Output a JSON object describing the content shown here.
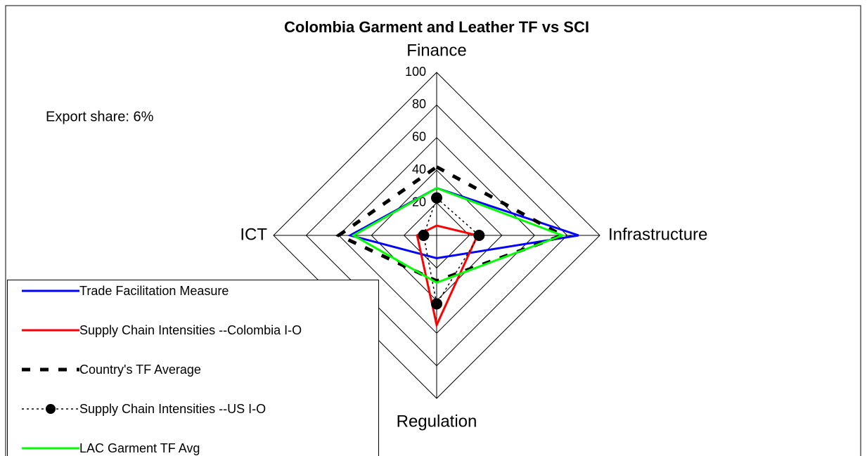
{
  "chart_data": {
    "type": "radar",
    "title": "Colombia Garment and Leather TF vs SCI",
    "annotation": "Export share: 6%",
    "categories": [
      "Finance",
      "Infrastructure",
      "Regulation",
      "ICT"
    ],
    "ylim": [
      0,
      100
    ],
    "yticks": [
      0,
      20,
      40,
      60,
      80,
      100
    ],
    "grid": true,
    "legend": "lower left",
    "series": [
      {
        "name": "Trade Facilitation Measure",
        "color": "#0000ff",
        "line_style": "solid",
        "values": [
          29,
          87,
          14,
          53
        ]
      },
      {
        "name": "Supply Chain Intensities --Colombia I-O",
        "color": "#ff0000",
        "line_style": "solid",
        "values": [
          6,
          25,
          55,
          12
        ]
      },
      {
        "name": "Country's TF Average",
        "color": "#000000",
        "line_style": "dashed",
        "values": [
          42,
          77,
          28,
          60
        ]
      },
      {
        "name": "Supply Chain Intensities --US I-O",
        "color": "#000000",
        "line_style": "dotted",
        "marker": "circle",
        "values": [
          23,
          26,
          42,
          8
        ]
      },
      {
        "name": "LAC Garment TF Avg",
        "color": "#00ff00",
        "line_style": "solid",
        "values": [
          29,
          77,
          29,
          51
        ]
      }
    ]
  }
}
